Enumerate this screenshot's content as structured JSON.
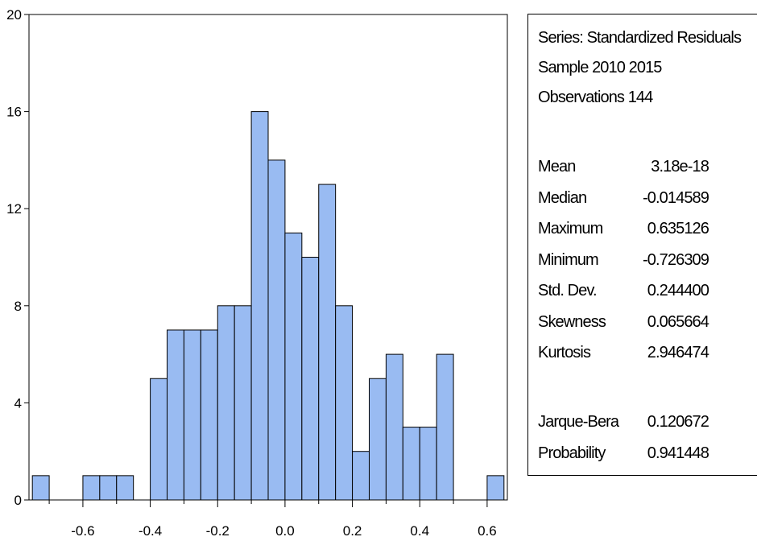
{
  "chart_data": {
    "type": "bar",
    "title": "",
    "xlabel": "",
    "ylabel": "",
    "bin_width": 0.05,
    "bins": [
      {
        "start": -0.75,
        "end": -0.7,
        "count": 1
      },
      {
        "start": -0.7,
        "end": -0.65,
        "count": 0
      },
      {
        "start": -0.65,
        "end": -0.6,
        "count": 0
      },
      {
        "start": -0.6,
        "end": -0.55,
        "count": 1
      },
      {
        "start": -0.55,
        "end": -0.5,
        "count": 1
      },
      {
        "start": -0.5,
        "end": -0.45,
        "count": 1
      },
      {
        "start": -0.45,
        "end": -0.4,
        "count": 0
      },
      {
        "start": -0.4,
        "end": -0.35,
        "count": 5
      },
      {
        "start": -0.35,
        "end": -0.3,
        "count": 7
      },
      {
        "start": -0.3,
        "end": -0.25,
        "count": 7
      },
      {
        "start": -0.25,
        "end": -0.2,
        "count": 7
      },
      {
        "start": -0.2,
        "end": -0.15,
        "count": 8
      },
      {
        "start": -0.15,
        "end": -0.1,
        "count": 8
      },
      {
        "start": -0.1,
        "end": -0.05,
        "count": 16
      },
      {
        "start": -0.05,
        "end": 0.0,
        "count": 14
      },
      {
        "start": 0.0,
        "end": 0.05,
        "count": 11
      },
      {
        "start": 0.05,
        "end": 0.1,
        "count": 10
      },
      {
        "start": 0.1,
        "end": 0.15,
        "count": 13
      },
      {
        "start": 0.15,
        "end": 0.2,
        "count": 8
      },
      {
        "start": 0.2,
        "end": 0.25,
        "count": 2
      },
      {
        "start": 0.25,
        "end": 0.3,
        "count": 5
      },
      {
        "start": 0.3,
        "end": 0.35,
        "count": 6
      },
      {
        "start": 0.35,
        "end": 0.4,
        "count": 3
      },
      {
        "start": 0.4,
        "end": 0.45,
        "count": 3
      },
      {
        "start": 0.45,
        "end": 0.5,
        "count": 6
      },
      {
        "start": 0.5,
        "end": 0.55,
        "count": 0
      },
      {
        "start": 0.55,
        "end": 0.6,
        "count": 0
      },
      {
        "start": 0.6,
        "end": 0.65,
        "count": 1
      }
    ],
    "xlim": [
      -0.76,
      0.66
    ],
    "ylim": [
      0,
      20
    ],
    "x_ticks": [
      -0.6,
      -0.4,
      -0.2,
      0.0,
      0.2,
      0.4,
      0.6
    ],
    "x_tick_labels": [
      "-0.6",
      "-0.4",
      "-0.2",
      "0.0",
      "0.2",
      "0.4",
      "0.6"
    ],
    "y_ticks": [
      0,
      4,
      8,
      12,
      16,
      20
    ],
    "y_tick_labels": [
      "0",
      "4",
      "8",
      "12",
      "16",
      "20"
    ],
    "bar_color": "#99bbf2",
    "bar_edge_color": "#000000",
    "grid": false
  },
  "stats": {
    "series_line": "Series: Standardized Residuals",
    "sample_line": "Sample 2010 2015",
    "observations_line": "Observations 144",
    "rows": [
      {
        "label": "Mean",
        "value": "3.18e-18"
      },
      {
        "label": "Median",
        "value": "-0.014589"
      },
      {
        "label": "Maximum",
        "value": "0.635126"
      },
      {
        "label": "Minimum",
        "value": "-0.726309"
      },
      {
        "label": "Std. Dev.",
        "value": "0.244400"
      },
      {
        "label": "Skewness",
        "value": "0.065664"
      },
      {
        "label": "Kurtosis",
        "value": "2.946474"
      }
    ],
    "test_rows": [
      {
        "label": "Jarque-Bera",
        "value": "0.120672"
      },
      {
        "label": "Probability",
        "value": "0.941448"
      }
    ]
  }
}
